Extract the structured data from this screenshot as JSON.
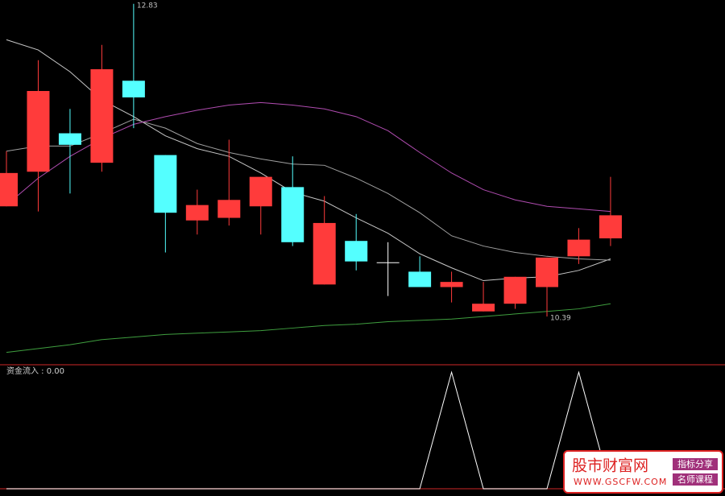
{
  "chart_data": {
    "type": "candlestick",
    "categories": [
      null,
      null,
      null,
      null,
      null,
      null,
      null,
      null,
      null,
      null,
      null,
      null,
      null,
      null,
      null,
      null,
      null,
      null,
      null,
      null
    ],
    "up_color": "#ff3b3b",
    "down_color": "#54ffff",
    "flat_color": "#ffffff",
    "ylim": [
      10.02,
      12.86
    ],
    "open": [
      11.25,
      11.52,
      11.82,
      11.59,
      12.23,
      11.65,
      11.14,
      11.16,
      11.25,
      11.4,
      10.64,
      10.98,
      10.81,
      10.74,
      10.62,
      10.43,
      10.49,
      10.62,
      10.86,
      11.0
    ],
    "high": [
      11.68,
      12.39,
      12.01,
      12.51,
      12.83,
      11.65,
      11.38,
      11.77,
      11.48,
      11.64,
      11.33,
      11.19,
      10.97,
      10.86,
      10.74,
      10.66,
      10.7,
      10.85,
      11.08,
      11.48
    ],
    "low": [
      11.25,
      11.21,
      11.35,
      11.52,
      11.86,
      10.89,
      11.03,
      11.1,
      11.03,
      10.94,
      10.64,
      10.75,
      10.55,
      10.62,
      10.5,
      10.43,
      10.45,
      10.39,
      10.8,
      10.94
    ],
    "close": [
      11.51,
      12.15,
      11.73,
      12.32,
      12.1,
      11.2,
      11.26,
      11.3,
      11.48,
      10.97,
      11.12,
      10.82,
      10.81,
      10.62,
      10.66,
      10.49,
      10.7,
      10.85,
      10.99,
      11.18
    ],
    "lines": [
      {
        "color": "#c8c8c8",
        "values": [
          12.55,
          12.47,
          12.3,
          12.08,
          11.95,
          11.8,
          11.7,
          11.64,
          11.51,
          11.36,
          11.29,
          11.16,
          11.04,
          10.88,
          10.77,
          10.67,
          10.69,
          10.7,
          10.75,
          10.84
        ]
      },
      {
        "color": "#a0a0a0",
        "values": [
          11.68,
          11.72,
          11.72,
          11.82,
          11.93,
          11.86,
          11.74,
          11.67,
          11.62,
          11.58,
          11.57,
          11.47,
          11.35,
          11.2,
          11.02,
          10.94,
          10.89,
          10.86,
          10.84,
          10.83
        ]
      },
      {
        "color": "#b04cb0",
        "values": [
          11.26,
          11.47,
          11.64,
          11.78,
          11.89,
          11.95,
          12.0,
          12.04,
          12.06,
          12.04,
          12.01,
          11.95,
          11.84,
          11.67,
          11.51,
          11.38,
          11.3,
          11.25,
          11.23,
          11.21
        ]
      },
      {
        "color": "#3f9f3f",
        "values": [
          10.11,
          10.14,
          10.17,
          10.21,
          10.23,
          10.25,
          10.26,
          10.27,
          10.28,
          10.3,
          10.32,
          10.33,
          10.35,
          10.36,
          10.37,
          10.39,
          10.41,
          10.43,
          10.45,
          10.49
        ]
      }
    ],
    "indicator": {
      "title": "资金流入 : 0.00",
      "color": "#ffffff",
      "ylim": [
        0,
        1.05
      ],
      "values": [
        0,
        0,
        0,
        0,
        0,
        0,
        0,
        0,
        0,
        0,
        0,
        0,
        0,
        0,
        1,
        0,
        0,
        0,
        1,
        0
      ]
    },
    "watermark": {
      "site": "股市财富网",
      "tag1": "指标分享",
      "tag2": "名师课程",
      "url": "WWW.GSCFW.COM"
    }
  }
}
